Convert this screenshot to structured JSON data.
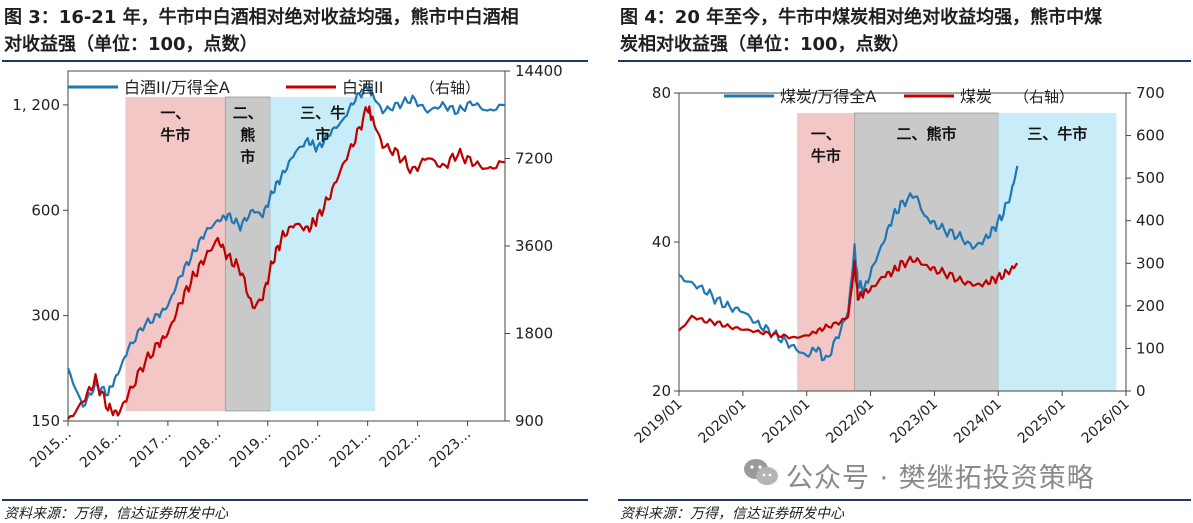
{
  "left_panel": {
    "title_line1": "图 3：16-21 年，牛市中白酒相对绝对收益均强，熊市中白酒相",
    "title_line2": "对收益强（单位：100，点数）",
    "source": "资料来源：万得，信达证券研发中心"
  },
  "right_panel": {
    "title_line1": "图 4：20 年至今，牛市中煤炭相对绝对收益均强，熊市中煤",
    "title_line2": "炭相对收益强（单位：100，点数）",
    "source": "资料来源：万得，信达证券研发中心"
  },
  "watermark": "公众号 · 樊继拓投资策略",
  "colors": {
    "blue": "#1f77b4",
    "red": "#c00000",
    "pink": "#f4c7c7",
    "gray": "#c9c9c9",
    "cyan": "#c8ecf8",
    "rule": "#1f3864"
  },
  "chart_data": [
    {
      "type": "line",
      "x_ticks": [
        "2015…",
        "2016…",
        "2017…",
        "2018…",
        "2019…",
        "2020…",
        "2021…",
        "2022…",
        "2023…"
      ],
      "x_range": [
        2015.0,
        2023.75
      ],
      "y_left": {
        "scale": "log",
        "ylim": [
          150,
          1500
        ],
        "ticks": [
          150,
          300,
          600,
          1200
        ],
        "tick_labels": [
          "150",
          "300",
          "600",
          "1, 200"
        ]
      },
      "y_right": {
        "scale": "log",
        "ylim": [
          900,
          14400
        ],
        "ticks": [
          900,
          1800,
          3600,
          7200,
          14400
        ],
        "tick_labels": [
          "900",
          "1800",
          "3600",
          "7200",
          "14400"
        ],
        "label": "（右轴）"
      },
      "shaded_regions": [
        {
          "label_line1": "一、",
          "label_line2": "牛市",
          "x_start": 2016.15,
          "x_end": 2018.15,
          "color": "pink"
        },
        {
          "label_line1": "二、",
          "label_line2": "熊",
          "label_line3": "市",
          "x_start": 2018.15,
          "x_end": 2019.05,
          "color": "gray"
        },
        {
          "label_line1": "三、牛",
          "label_line2": "市",
          "x_start": 2019.05,
          "x_end": 2021.15,
          "color": "cyan"
        }
      ],
      "series": [
        {
          "name": "白酒II/万得全A",
          "axis": "left",
          "color": "blue",
          "x": [
            2015.0,
            2015.3,
            2015.55,
            2015.8,
            2016.0,
            2016.2,
            2016.5,
            2016.8,
            2017.0,
            2017.25,
            2017.5,
            2017.75,
            2018.0,
            2018.2,
            2018.45,
            2018.7,
            2018.9,
            2019.1,
            2019.3,
            2019.55,
            2019.8,
            2020.0,
            2020.25,
            2020.5,
            2020.75,
            2021.0,
            2021.1,
            2021.3,
            2021.6,
            2021.9,
            2022.2,
            2022.5,
            2022.8,
            2023.1,
            2023.4,
            2023.75
          ],
          "values": [
            210,
            165,
            190,
            180,
            205,
            240,
            280,
            300,
            320,
            390,
            450,
            520,
            560,
            580,
            540,
            600,
            580,
            680,
            760,
            880,
            950,
            900,
            1000,
            1080,
            1250,
            1350,
            1280,
            1150,
            1200,
            1250,
            1150,
            1200,
            1150,
            1220,
            1150,
            1200
          ]
        },
        {
          "name": "白酒II",
          "axis": "right",
          "color": "red",
          "x": [
            2015.0,
            2015.3,
            2015.55,
            2015.8,
            2016.0,
            2016.2,
            2016.5,
            2016.8,
            2017.0,
            2017.25,
            2017.5,
            2017.75,
            2018.0,
            2018.2,
            2018.45,
            2018.7,
            2018.9,
            2019.1,
            2019.3,
            2019.55,
            2019.8,
            2020.0,
            2020.25,
            2020.5,
            2020.75,
            2021.0,
            2021.1,
            2021.3,
            2021.6,
            2021.9,
            2022.2,
            2022.5,
            2022.8,
            2023.1,
            2023.4,
            2023.75
          ],
          "values": [
            900,
            1050,
            1250,
            1000,
            950,
            1100,
            1400,
            1650,
            1800,
            2300,
            2800,
            3300,
            3800,
            3300,
            3000,
            2200,
            2400,
            3200,
            3900,
            4300,
            4100,
            4500,
            5400,
            6800,
            8400,
            10800,
            9800,
            8000,
            7500,
            6500,
            7300,
            6700,
            7500,
            7000,
            6600,
            7000
          ]
        }
      ]
    },
    {
      "type": "line",
      "x_ticks": [
        "2019/01",
        "2020/01",
        "2021/01",
        "2022/01",
        "2023/01",
        "2024/01",
        "2025/01",
        "2026/01"
      ],
      "x_range": [
        2019.0,
        2026.0
      ],
      "y_left": {
        "scale": "log",
        "ylim": [
          20,
          80
        ],
        "ticks": [
          20,
          40,
          80
        ],
        "tick_labels": [
          "20",
          "40",
          "80"
        ]
      },
      "y_right": {
        "scale": "linear",
        "ylim": [
          0,
          700
        ],
        "ticks": [
          0,
          100,
          200,
          300,
          400,
          500,
          600,
          700
        ],
        "tick_labels": [
          "0",
          "100",
          "200",
          "300",
          "400",
          "500",
          "600",
          "700"
        ],
        "label": "（右轴）"
      },
      "shaded_regions": [
        {
          "label_line1": "一、",
          "label_line2": "牛市",
          "x_start": 2020.85,
          "x_end": 2021.75,
          "color": "pink"
        },
        {
          "label_line1": "二、熊市",
          "label_line2": "",
          "x_start": 2021.75,
          "x_end": 2024.0,
          "color": "gray"
        },
        {
          "label_line1": "三、牛市",
          "label_line2": "",
          "x_start": 2024.0,
          "x_end": 2025.85,
          "color": "cyan"
        }
      ],
      "series": [
        {
          "name": "煤炭/万得全A",
          "axis": "left",
          "color": "blue",
          "x": [
            2019.0,
            2019.2,
            2019.4,
            2019.6,
            2019.8,
            2020.0,
            2020.2,
            2020.4,
            2020.6,
            2020.8,
            2021.0,
            2021.15,
            2021.3,
            2021.5,
            2021.65,
            2021.75,
            2021.8,
            2021.9,
            2022.05,
            2022.2,
            2022.35,
            2022.5,
            2022.7,
            2022.85,
            2023.0,
            2023.2,
            2023.4,
            2023.6,
            2023.75,
            2023.9,
            2024.05,
            2024.2,
            2024.3
          ],
          "values": [
            34,
            33,
            32,
            30.5,
            29.5,
            29,
            27.5,
            26.5,
            25.5,
            24.5,
            23.5,
            24.5,
            23.0,
            26,
            29,
            39,
            33,
            32,
            36,
            40,
            45,
            48,
            50,
            45,
            43.5,
            42,
            41,
            39,
            40,
            42,
            45,
            50,
            57
          ]
        },
        {
          "name": "煤炭",
          "axis": "right",
          "color": "red",
          "x": [
            2019.0,
            2019.2,
            2019.4,
            2019.6,
            2019.8,
            2020.0,
            2020.2,
            2020.4,
            2020.6,
            2020.8,
            2021.0,
            2021.15,
            2021.3,
            2021.5,
            2021.65,
            2021.75,
            2021.8,
            2021.9,
            2022.05,
            2022.2,
            2022.35,
            2022.5,
            2022.7,
            2022.85,
            2023.0,
            2023.2,
            2023.4,
            2023.6,
            2023.75,
            2023.9,
            2024.05,
            2024.2,
            2024.3
          ],
          "values": [
            140,
            175,
            165,
            160,
            150,
            145,
            140,
            135,
            130,
            125,
            130,
            140,
            150,
            160,
            175,
            300,
            220,
            230,
            245,
            270,
            280,
            300,
            310,
            295,
            285,
            275,
            260,
            250,
            250,
            260,
            270,
            285,
            300
          ]
        }
      ]
    }
  ]
}
